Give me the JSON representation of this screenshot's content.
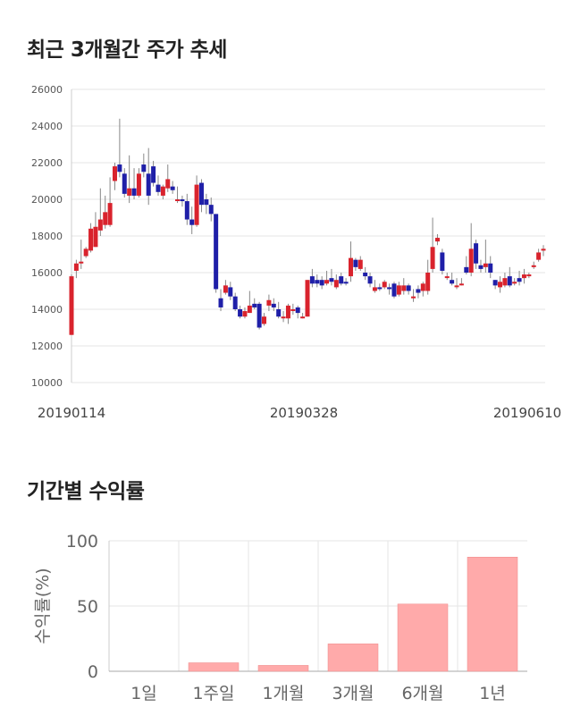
{
  "sections": {
    "price_title": "최근 3개월간 주가 추세",
    "return_title": "기간별 수익률"
  },
  "colors": {
    "up": "#d9232d",
    "down": "#1f1fa8",
    "bar": "#ffaaaa",
    "grid": "#e6e6e6"
  },
  "chart_data": [
    {
      "type": "candlestick",
      "title": "최근 3개월간 주가 추세",
      "ylim": [
        10000,
        26000
      ],
      "y_ticks": [
        10000,
        12000,
        14000,
        16000,
        18000,
        20000,
        22000,
        24000,
        26000
      ],
      "x_tick_labels": [
        "20190114",
        "20190328",
        "20190610"
      ],
      "grid": true,
      "ohlc": [
        [
          12600,
          15800,
          12600,
          15900
        ],
        [
          16100,
          16500,
          15700,
          16700
        ],
        [
          16500,
          16600,
          16200,
          17800
        ],
        [
          16900,
          17300,
          16800,
          17400
        ],
        [
          17200,
          18400,
          17100,
          18700
        ],
        [
          17400,
          18500,
          17400,
          19300
        ],
        [
          18300,
          18900,
          18000,
          20600
        ],
        [
          18600,
          19300,
          18400,
          20200
        ],
        [
          18600,
          19800,
          18500,
          21200
        ],
        [
          21000,
          21800,
          20500,
          22000
        ],
        [
          21900,
          21500,
          21200,
          24400
        ],
        [
          21400,
          20300,
          20100,
          21700
        ],
        [
          20200,
          20600,
          19800,
          22400
        ],
        [
          20600,
          20200,
          20000,
          21700
        ],
        [
          20200,
          21400,
          20100,
          21700
        ],
        [
          21900,
          21500,
          21200,
          22500
        ],
        [
          21400,
          20200,
          19700,
          22800
        ],
        [
          21800,
          20900,
          20700,
          22100
        ],
        [
          20800,
          20400,
          20200,
          21300
        ],
        [
          20200,
          20700,
          20000,
          20800
        ],
        [
          20600,
          21100,
          20400,
          21900
        ],
        [
          20700,
          20500,
          20300,
          21000
        ],
        [
          20000,
          20000,
          19800,
          20700
        ],
        [
          20000,
          19900,
          19600,
          20200
        ],
        [
          19900,
          18900,
          18600,
          20300
        ],
        [
          18900,
          18600,
          18100,
          19600
        ],
        [
          18600,
          20800,
          18500,
          21300
        ],
        [
          20900,
          19700,
          19300,
          21100
        ],
        [
          20000,
          19700,
          19200,
          20300
        ],
        [
          19700,
          19200,
          18800,
          20100
        ],
        [
          19200,
          15100,
          14900,
          19200
        ],
        [
          14600,
          14100,
          13900,
          15100
        ],
        [
          14900,
          15300,
          14800,
          15600
        ],
        [
          15200,
          14700,
          14500,
          15500
        ],
        [
          14700,
          14000,
          13900,
          14900
        ],
        [
          14000,
          13600,
          13500,
          14200
        ],
        [
          13600,
          13900,
          13500,
          14100
        ],
        [
          13800,
          14200,
          13800,
          15000
        ],
        [
          14300,
          14100,
          14000,
          14600
        ],
        [
          14300,
          13000,
          12900,
          14400
        ],
        [
          13200,
          13600,
          13100,
          13800
        ],
        [
          14200,
          14500,
          13900,
          14800
        ],
        [
          14300,
          14100,
          13900,
          14600
        ],
        [
          14000,
          13600,
          13500,
          14400
        ],
        [
          13600,
          13600,
          13300,
          13900
        ],
        [
          13500,
          14200,
          13200,
          14300
        ],
        [
          14000,
          14000,
          13700,
          14300
        ],
        [
          14100,
          13800,
          13500,
          14200
        ],
        [
          13600,
          13600,
          13500,
          13800
        ],
        [
          13600,
          15600,
          13600,
          15600
        ],
        [
          15800,
          15400,
          15200,
          16200
        ],
        [
          15600,
          15400,
          15200,
          15900
        ],
        [
          15600,
          15300,
          15100,
          15800
        ],
        [
          15400,
          15600,
          15300,
          16100
        ],
        [
          15700,
          15500,
          15300,
          16200
        ],
        [
          15200,
          15600,
          15100,
          15900
        ],
        [
          15800,
          15400,
          15300,
          16000
        ],
        [
          15500,
          15400,
          15300,
          15700
        ],
        [
          15800,
          16800,
          15500,
          17700
        ],
        [
          16700,
          16300,
          16100,
          16800
        ],
        [
          16200,
          16700,
          16100,
          16900
        ],
        [
          16000,
          15800,
          15600,
          16300
        ],
        [
          15800,
          15400,
          15200,
          16000
        ],
        [
          15000,
          15200,
          14900,
          15600
        ],
        [
          15200,
          15100,
          15000,
          15400
        ],
        [
          15200,
          15500,
          15100,
          15600
        ],
        [
          15200,
          15100,
          14800,
          15400
        ],
        [
          15400,
          14700,
          14600,
          15500
        ],
        [
          14800,
          15300,
          14700,
          15500
        ],
        [
          15000,
          15300,
          14800,
          15700
        ],
        [
          15300,
          15000,
          14800,
          15400
        ],
        [
          14600,
          14700,
          14400,
          15100
        ],
        [
          15100,
          14900,
          14600,
          15300
        ],
        [
          15000,
          15400,
          14700,
          15500
        ],
        [
          15000,
          16000,
          14800,
          16700
        ],
        [
          16200,
          17400,
          16000,
          19000
        ],
        [
          17700,
          17900,
          17500,
          18100
        ],
        [
          17100,
          16100,
          15900,
          17300
        ],
        [
          15800,
          15800,
          15600,
          16000
        ],
        [
          15600,
          15400,
          15300,
          16000
        ],
        [
          15300,
          15300,
          15100,
          15700
        ],
        [
          15400,
          15400,
          15300,
          15700
        ],
        [
          16300,
          16000,
          15900,
          16900
        ],
        [
          16000,
          17300,
          15800,
          18700
        ],
        [
          17600,
          16500,
          16200,
          17800
        ],
        [
          16400,
          16200,
          16000,
          16700
        ],
        [
          16300,
          16500,
          16000,
          17800
        ],
        [
          16500,
          16000,
          15700,
          16900
        ],
        [
          15600,
          15300,
          15100,
          15600
        ],
        [
          15200,
          15500,
          14900,
          15800
        ],
        [
          15300,
          15700,
          15200,
          16000
        ],
        [
          15800,
          15300,
          15200,
          16300
        ],
        [
          15400,
          15500,
          15300,
          15700
        ],
        [
          15700,
          15500,
          15300,
          16100
        ],
        [
          15700,
          15900,
          15400,
          16200
        ],
        [
          15800,
          15900,
          15700,
          16000
        ],
        [
          16300,
          16400,
          16200,
          16600
        ],
        [
          16700,
          17100,
          16600,
          17300
        ],
        [
          17200,
          17300,
          16900,
          17500
        ]
      ]
    },
    {
      "type": "bar",
      "title": "기간별 수익률",
      "categories": [
        "1일",
        "1주일",
        "1개월",
        "3개월",
        "6개월",
        "1년"
      ],
      "values": [
        0,
        6.5,
        4.5,
        21,
        51.5,
        87.5
      ],
      "ylabel": "수익률(%)",
      "ylim": [
        0,
        100
      ],
      "y_ticks": [
        0,
        50,
        100
      ],
      "grid": true
    }
  ]
}
